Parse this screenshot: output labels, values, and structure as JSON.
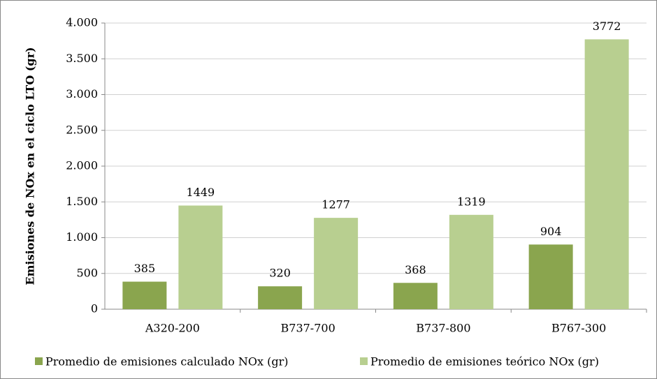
{
  "chart_data": {
    "type": "bar",
    "y_label": "Emisiones de NOx en el ciclo LTO (gr)",
    "categories": [
      "A320-200",
      "B737-700",
      "B737-800",
      "B767-300"
    ],
    "series": [
      {
        "name": "Promedio de emisiones calculado NOx (gr)",
        "color": "#8aa54e",
        "values": [
          385,
          320,
          368,
          904
        ]
      },
      {
        "name": "Promedio de emisiones teórico NOx (gr)",
        "color": "#b8cf90",
        "values": [
          1449,
          1277,
          1319,
          3772
        ]
      }
    ],
    "ylim": [
      0,
      4000
    ],
    "yticks": [
      0,
      500,
      {
        "value": 1000,
        "label": "1.000"
      },
      {
        "value": 1500,
        "label": "1.500"
      },
      {
        "value": 2000,
        "label": "2.000"
      },
      {
        "value": 2500,
        "label": "2.500"
      },
      {
        "value": 3000,
        "label": "3.000"
      },
      {
        "value": 3500,
        "label": "3.500"
      },
      {
        "value": 4000,
        "label": "4.000"
      }
    ],
    "grid": true,
    "legend": "bottom"
  }
}
